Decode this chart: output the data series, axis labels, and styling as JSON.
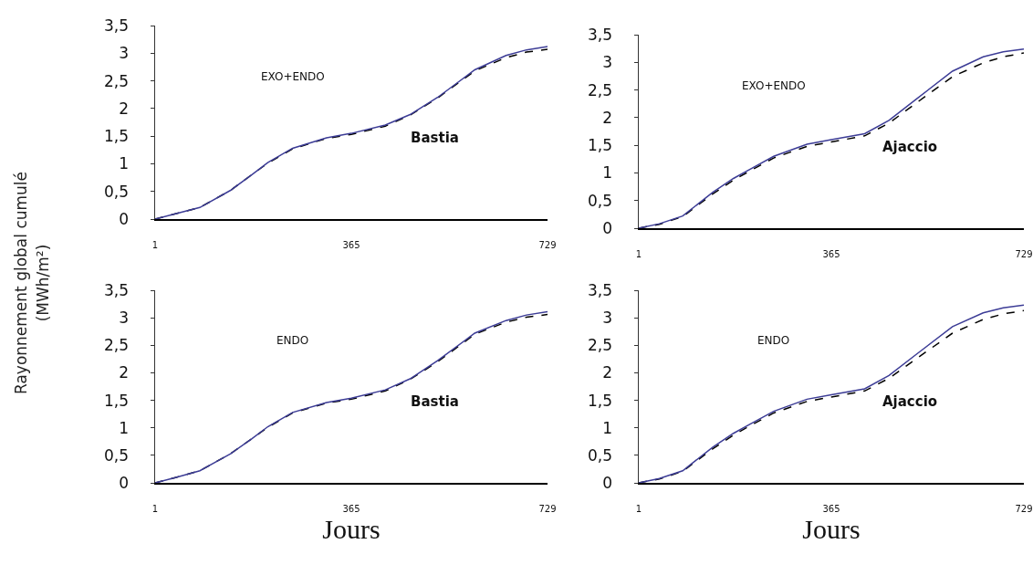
{
  "chart_data": [
    {
      "type": "line",
      "ylabel": "Rayonnement global cumulé (MWh/m²)",
      "annotations": [
        "EXO+ENDO",
        "Bastia"
      ],
      "x": [
        1,
        40,
        84,
        141,
        180,
        210,
        256,
        319,
        365,
        428,
        474,
        525,
        594,
        652,
        690,
        729
      ],
      "xlim": [
        1,
        729
      ],
      "xticks": [
        1,
        365,
        729
      ],
      "ylim": [
        0,
        3.5
      ],
      "yticks": [
        {
          "value": 0,
          "label": "0"
        },
        {
          "value": 0.5,
          "label": "0,5"
        },
        {
          "value": 1,
          "label": "1"
        },
        {
          "value": 1.5,
          "label": "1,5"
        },
        {
          "value": 2,
          "label": "2"
        },
        {
          "value": 2.5,
          "label": "2,5"
        },
        {
          "value": 3,
          "label": "3"
        },
        {
          "value": 3.5,
          "label": "3,5"
        }
      ],
      "series": [
        {
          "color": "#000000",
          "line_style": "dashed",
          "values": [
            0,
            0.1,
            0.21,
            0.52,
            0.8,
            1.01,
            1.27,
            1.46,
            1.53,
            1.68,
            1.88,
            2.19,
            2.68,
            2.92,
            3.02,
            3.07
          ]
        },
        {
          "color": "#3c3c96",
          "line_style": "solid",
          "values": [
            0,
            0.1,
            0.21,
            0.52,
            0.8,
            1.02,
            1.28,
            1.47,
            1.55,
            1.7,
            1.89,
            2.2,
            2.7,
            2.96,
            3.06,
            3.12
          ]
        }
      ]
    },
    {
      "type": "line",
      "annotations": [
        "EXO+ENDO",
        "Ajaccio"
      ],
      "x": [
        1,
        40,
        84,
        141,
        180,
        210,
        256,
        319,
        365,
        428,
        474,
        525,
        594,
        652,
        690,
        729
      ],
      "xlim": [
        1,
        729
      ],
      "xticks": [
        1,
        365,
        729
      ],
      "ylim": [
        0,
        3.5
      ],
      "yticks": [
        {
          "value": 0,
          "label": "0"
        },
        {
          "value": 0.5,
          "label": "0,5"
        },
        {
          "value": 1,
          "label": "1"
        },
        {
          "value": 1.5,
          "label": "1,5"
        },
        {
          "value": 2,
          "label": "2"
        },
        {
          "value": 2.5,
          "label": "2,5"
        },
        {
          "value": 3,
          "label": "3"
        },
        {
          "value": 3.5,
          "label": "3,5"
        }
      ],
      "series": [
        {
          "color": "#000000",
          "line_style": "dashed",
          "values": [
            0,
            0.07,
            0.21,
            0.62,
            0.87,
            1.03,
            1.27,
            1.48,
            1.56,
            1.67,
            1.9,
            2.26,
            2.74,
            2.99,
            3.1,
            3.17
          ]
        },
        {
          "color": "#3c3c96",
          "line_style": "solid",
          "values": [
            0,
            0.08,
            0.22,
            0.65,
            0.9,
            1.06,
            1.3,
            1.52,
            1.6,
            1.71,
            1.95,
            2.33,
            2.84,
            3.1,
            3.19,
            3.24
          ]
        }
      ]
    },
    {
      "type": "line",
      "xlabel": "Jours",
      "annotations": [
        "ENDO",
        "Bastia"
      ],
      "x": [
        1,
        40,
        84,
        141,
        180,
        210,
        256,
        319,
        365,
        428,
        474,
        525,
        594,
        652,
        690,
        729
      ],
      "xlim": [
        1,
        729
      ],
      "xticks": [
        1,
        365,
        729
      ],
      "ylim": [
        0,
        3.5
      ],
      "yticks": [
        {
          "value": 0,
          "label": "0"
        },
        {
          "value": 0.5,
          "label": "0,5"
        },
        {
          "value": 1,
          "label": "1"
        },
        {
          "value": 1.5,
          "label": "1,5"
        },
        {
          "value": 2,
          "label": "2"
        },
        {
          "value": 2.5,
          "label": "2,5"
        },
        {
          "value": 3,
          "label": "3"
        },
        {
          "value": 3.5,
          "label": "3,5"
        }
      ],
      "series": [
        {
          "color": "#000000",
          "line_style": "dashed",
          "values": [
            0,
            0.1,
            0.22,
            0.53,
            0.8,
            1.01,
            1.27,
            1.45,
            1.52,
            1.67,
            1.88,
            2.2,
            2.7,
            2.92,
            3.01,
            3.06
          ]
        },
        {
          "color": "#3c3c96",
          "line_style": "solid",
          "values": [
            0,
            0.1,
            0.22,
            0.53,
            0.8,
            1.02,
            1.28,
            1.46,
            1.54,
            1.69,
            1.89,
            2.22,
            2.72,
            2.95,
            3.05,
            3.11
          ]
        }
      ]
    },
    {
      "type": "line",
      "xlabel": "Jours",
      "annotations": [
        "ENDO",
        "Ajaccio"
      ],
      "x": [
        1,
        40,
        84,
        141,
        180,
        210,
        256,
        319,
        365,
        428,
        474,
        525,
        594,
        652,
        690,
        729
      ],
      "xlim": [
        1,
        729
      ],
      "xticks": [
        1,
        365,
        729
      ],
      "ylim": [
        0,
        3.5
      ],
      "yticks": [
        {
          "value": 0,
          "label": "0"
        },
        {
          "value": 0.5,
          "label": "0,5"
        },
        {
          "value": 1,
          "label": "1"
        },
        {
          "value": 1.5,
          "label": "1,5"
        },
        {
          "value": 2,
          "label": "2"
        },
        {
          "value": 2.5,
          "label": "2,5"
        },
        {
          "value": 3,
          "label": "3"
        },
        {
          "value": 3.5,
          "label": "3,5"
        }
      ],
      "series": [
        {
          "color": "#000000",
          "line_style": "dashed",
          "values": [
            0,
            0.07,
            0.21,
            0.62,
            0.87,
            1.03,
            1.27,
            1.48,
            1.56,
            1.67,
            1.9,
            2.25,
            2.72,
            2.97,
            3.07,
            3.13
          ]
        },
        {
          "color": "#3c3c96",
          "line_style": "solid",
          "values": [
            0,
            0.08,
            0.22,
            0.65,
            0.9,
            1.06,
            1.3,
            1.52,
            1.6,
            1.71,
            1.95,
            2.33,
            2.84,
            3.09,
            3.18,
            3.23
          ]
        }
      ]
    }
  ]
}
